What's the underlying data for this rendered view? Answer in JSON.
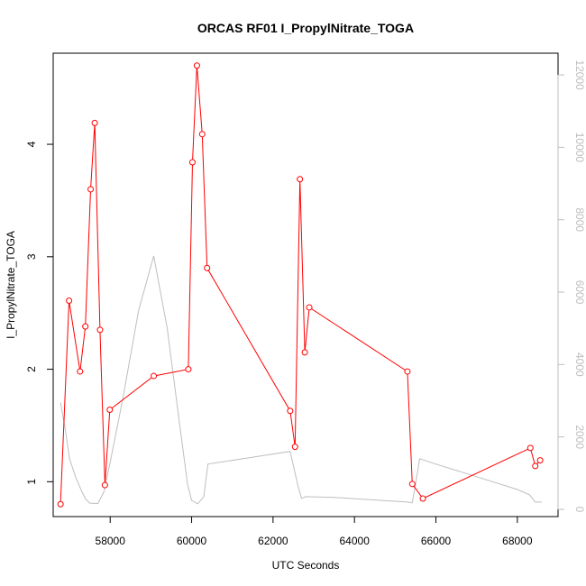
{
  "chart_data": {
    "type": "line",
    "title": "ORCAS RF01 I_PropylNitrate_TOGA",
    "xlabel": "UTC Seconds",
    "ylabel": "I_PropylNitrate_TOGA",
    "xlim": [
      56600,
      69000
    ],
    "ylim": [
      0.69,
      4.81
    ],
    "y2lim": [
      -200,
      12600
    ],
    "x_ticks": [
      58000,
      60000,
      62000,
      64000,
      66000,
      68000
    ],
    "y_ticks": [
      1,
      2,
      3,
      4
    ],
    "y2_ticks": [
      0,
      2000,
      4000,
      6000,
      8000,
      10000,
      12000
    ],
    "series": [
      {
        "color": "#ff0000",
        "marker": "open-circle",
        "axis": "left",
        "x": [
          56780,
          56990,
          57260,
          57390,
          57520,
          57620,
          57750,
          57870,
          57990,
          59070,
          59920,
          60020,
          60130,
          60260,
          60380,
          62420,
          62540,
          62660,
          62780,
          62890,
          65300,
          65420,
          65680,
          68320,
          68440,
          68560
        ],
        "y": [
          0.8,
          2.61,
          1.98,
          2.38,
          3.6,
          4.19,
          2.35,
          0.97,
          1.64,
          1.94,
          2.0,
          3.84,
          4.7,
          4.09,
          2.9,
          1.63,
          1.31,
          3.69,
          2.15,
          2.55,
          1.98,
          0.98,
          0.85,
          1.3,
          1.14,
          1.19
        ]
      },
      {
        "color": "#bebebe",
        "marker": "none",
        "axis": "right",
        "x": [
          56780,
          56900,
          57000,
          57150,
          57300,
          57400,
          57500,
          57700,
          57850,
          58000,
          58300,
          58700,
          59070,
          59400,
          59700,
          59900,
          60000,
          60150,
          60300,
          60400,
          62420,
          62500,
          62600,
          62700,
          62800,
          63500,
          65300,
          65420,
          65500,
          65600,
          66000,
          67000,
          68000,
          68300,
          68440,
          68600
        ],
        "y": [
          2950,
          2200,
          1400,
          900,
          500,
          280,
          170,
          160,
          500,
          1300,
          3000,
          5500,
          7000,
          5000,
          2400,
          700,
          250,
          150,
          350,
          1250,
          1600,
          1200,
          700,
          300,
          350,
          330,
          200,
          180,
          700,
          1400,
          1250,
          900,
          550,
          400,
          200,
          200
        ]
      }
    ]
  }
}
